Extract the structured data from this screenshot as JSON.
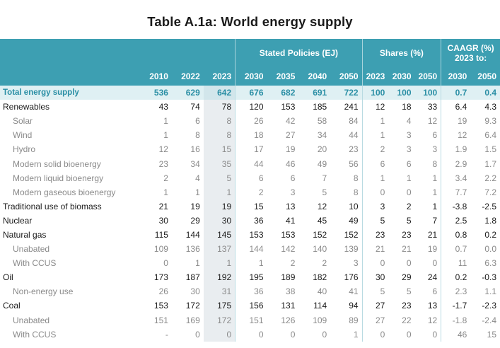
{
  "title": "Table A.1a: World energy supply",
  "header": {
    "group_stated": "Stated Policies (EJ)",
    "group_shares": "Shares (%)",
    "group_caagr_line1": "CAAGR (%)",
    "group_caagr_line2": "2023 to:",
    "years": [
      "2010",
      "2022",
      "2023",
      "2030",
      "2035",
      "2040",
      "2050"
    ],
    "share_years": [
      "2023",
      "2030",
      "2050"
    ],
    "caagr_years": [
      "2030",
      "2050"
    ]
  },
  "rows": [
    {
      "type": "total",
      "label": "Total energy supply",
      "values": [
        "536",
        "629",
        "642",
        "676",
        "682",
        "691",
        "722"
      ],
      "shares": [
        "100",
        "100",
        "100"
      ],
      "caagr": [
        "0.7",
        "0.4"
      ]
    },
    {
      "type": "main",
      "label": "Renewables",
      "values": [
        "43",
        "74",
        "78",
        "120",
        "153",
        "185",
        "241"
      ],
      "shares": [
        "12",
        "18",
        "33"
      ],
      "caagr": [
        "6.4",
        "4.3"
      ]
    },
    {
      "type": "sub",
      "label": "Solar",
      "values": [
        "1",
        "6",
        "8",
        "26",
        "42",
        "58",
        "84"
      ],
      "shares": [
        "1",
        "4",
        "12"
      ],
      "caagr": [
        "19",
        "9.3"
      ]
    },
    {
      "type": "sub",
      "label": "Wind",
      "values": [
        "1",
        "8",
        "8",
        "18",
        "27",
        "34",
        "44"
      ],
      "shares": [
        "1",
        "3",
        "6"
      ],
      "caagr": [
        "12",
        "6.4"
      ]
    },
    {
      "type": "sub",
      "label": "Hydro",
      "values": [
        "12",
        "16",
        "15",
        "17",
        "19",
        "20",
        "23"
      ],
      "shares": [
        "2",
        "3",
        "3"
      ],
      "caagr": [
        "1.9",
        "1.5"
      ]
    },
    {
      "type": "sub",
      "label": "Modern solid bioenergy",
      "values": [
        "23",
        "34",
        "35",
        "44",
        "46",
        "49",
        "56"
      ],
      "shares": [
        "6",
        "6",
        "8"
      ],
      "caagr": [
        "2.9",
        "1.7"
      ]
    },
    {
      "type": "sub",
      "label": "Modern liquid bioenergy",
      "values": [
        "2",
        "4",
        "5",
        "6",
        "6",
        "7",
        "8"
      ],
      "shares": [
        "1",
        "1",
        "1"
      ],
      "caagr": [
        "3.4",
        "2.2"
      ]
    },
    {
      "type": "sub",
      "label": "Modern gaseous bioenergy",
      "values": [
        "1",
        "1",
        "1",
        "2",
        "3",
        "5",
        "8"
      ],
      "shares": [
        "0",
        "0",
        "1"
      ],
      "caagr": [
        "7.7",
        "7.2"
      ]
    },
    {
      "type": "main",
      "label": "Traditional use of biomass",
      "values": [
        "21",
        "19",
        "19",
        "15",
        "13",
        "12",
        "10"
      ],
      "shares": [
        "3",
        "2",
        "1"
      ],
      "caagr": [
        "-3.8",
        "-2.5"
      ]
    },
    {
      "type": "main",
      "label": "Nuclear",
      "values": [
        "30",
        "29",
        "30",
        "36",
        "41",
        "45",
        "49"
      ],
      "shares": [
        "5",
        "5",
        "7"
      ],
      "caagr": [
        "2.5",
        "1.8"
      ]
    },
    {
      "type": "main",
      "label": "Natural gas",
      "values": [
        "115",
        "144",
        "145",
        "153",
        "153",
        "152",
        "152"
      ],
      "shares": [
        "23",
        "23",
        "21"
      ],
      "caagr": [
        "0.8",
        "0.2"
      ]
    },
    {
      "type": "sub",
      "label": "Unabated",
      "values": [
        "109",
        "136",
        "137",
        "144",
        "142",
        "140",
        "139"
      ],
      "shares": [
        "21",
        "21",
        "19"
      ],
      "caagr": [
        "0.7",
        "0.0"
      ]
    },
    {
      "type": "sub",
      "label": "With CCUS",
      "values": [
        "0",
        "1",
        "1",
        "1",
        "2",
        "2",
        "3"
      ],
      "shares": [
        "0",
        "0",
        "0"
      ],
      "caagr": [
        "11",
        "6.3"
      ]
    },
    {
      "type": "main",
      "label": "Oil",
      "values": [
        "173",
        "187",
        "192",
        "195",
        "189",
        "182",
        "176"
      ],
      "shares": [
        "30",
        "29",
        "24"
      ],
      "caagr": [
        "0.2",
        "-0.3"
      ]
    },
    {
      "type": "sub",
      "label": "Non-energy use",
      "values": [
        "26",
        "30",
        "31",
        "36",
        "38",
        "40",
        "41"
      ],
      "shares": [
        "5",
        "5",
        "6"
      ],
      "caagr": [
        "2.3",
        "1.1"
      ]
    },
    {
      "type": "main",
      "label": "Coal",
      "values": [
        "153",
        "172",
        "175",
        "156",
        "131",
        "114",
        "94"
      ],
      "shares": [
        "27",
        "23",
        "13"
      ],
      "caagr": [
        "-1.7",
        "-2.3"
      ]
    },
    {
      "type": "sub",
      "label": "Unabated",
      "values": [
        "151",
        "169",
        "172",
        "151",
        "126",
        "109",
        "89"
      ],
      "shares": [
        "27",
        "22",
        "12"
      ],
      "caagr": [
        "-1.8",
        "-2.4"
      ]
    },
    {
      "type": "sub",
      "label": "With CCUS",
      "values": [
        "-",
        "0",
        "0",
        "0",
        "0",
        "0",
        "1"
      ],
      "shares": [
        "0",
        "0",
        "0"
      ],
      "caagr": [
        "46",
        "15"
      ]
    }
  ]
}
